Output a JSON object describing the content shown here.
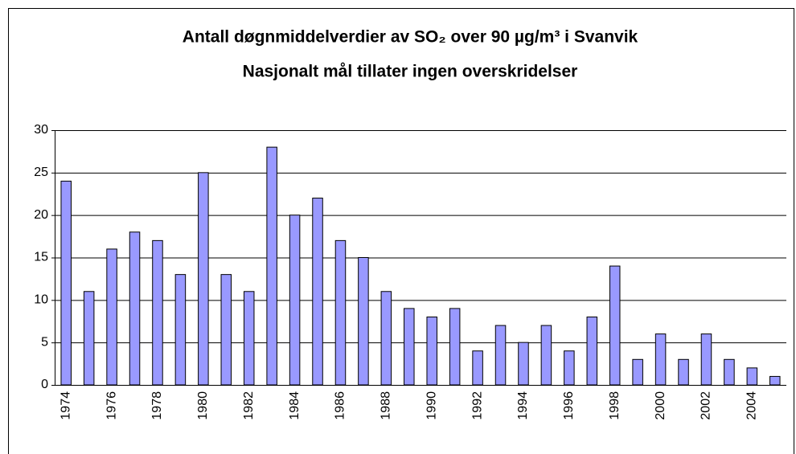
{
  "chart_data": {
    "type": "bar",
    "title": "Antall døgnmiddelverdier av SO₂ over 90 µg/m³ i Svanvik",
    "subtitle": "Nasjonalt mål tillater ingen overskridelser",
    "categories": [
      "1974",
      null,
      "1976",
      null,
      "1978",
      null,
      "1980",
      null,
      "1982",
      null,
      "1984",
      null,
      "1986",
      null,
      "1988",
      null,
      "1990",
      null,
      "1992",
      null,
      "1994",
      null,
      "1996",
      null,
      "1998",
      null,
      "2000",
      null,
      "2002",
      null,
      "2004",
      null
    ],
    "values": [
      24,
      11,
      16,
      18,
      17,
      13,
      25,
      13,
      11,
      28,
      20,
      22,
      17,
      15,
      11,
      9,
      8,
      9,
      4,
      7,
      5,
      7,
      4,
      8,
      14,
      3,
      6,
      3,
      6,
      3,
      2,
      1
    ],
    "color": "#9999ff",
    "ylim": [
      0,
      30
    ],
    "yticks": [
      0,
      5,
      10,
      15,
      20,
      25,
      30
    ],
    "grid": true
  }
}
